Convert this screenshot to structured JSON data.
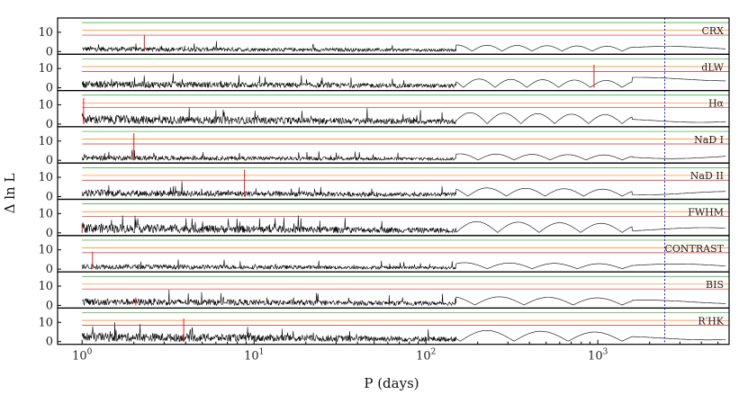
{
  "chart_data": {
    "type": "line",
    "xlabel": "P (days)",
    "ylabel": "Δ ln L",
    "x_scale": "log",
    "xlim": [
      0.72,
      5800
    ],
    "ylim": [
      0,
      16
    ],
    "x_ticks": [
      1,
      10,
      100,
      1000
    ],
    "x_tick_labels": [
      "10^0",
      "10^1",
      "10^2",
      "10^3"
    ],
    "y_ticks": [
      0,
      10
    ],
    "y_tick_labels": [
      "0",
      "10"
    ],
    "threshold_lines": [
      {
        "name": "green",
        "value": 15.0,
        "color": "#2ca02c"
      },
      {
        "name": "orange",
        "value": 11.0,
        "color": "#ff7f0e"
      },
      {
        "name": "red",
        "value": 8.5,
        "color": "#d62728"
      }
    ],
    "highlight_period": {
      "value": 2450,
      "color": "#0000cc",
      "style": "dashed"
    },
    "series": [
      {
        "name": "CRX",
        "peak_period": 2.3,
        "peak_value": 8.6
      },
      {
        "name": "dLW",
        "peak_period": 950,
        "peak_value": 12.0
      },
      {
        "name": "H_α",
        "peak_period": 1.02,
        "peak_value": 13.5
      },
      {
        "name": "NaD I",
        "peak_period": 2.0,
        "peak_value": 14.0
      },
      {
        "name": "NaD II",
        "peak_period": 8.8,
        "peak_value": 14.0
      },
      {
        "name": "FWHM",
        "peak_period": 1.0,
        "peak_value": 5.0
      },
      {
        "name": "CONTRAST",
        "peak_period": 1.15,
        "peak_value": 9.0
      },
      {
        "name": "BIS",
        "peak_period": 2.05,
        "peak_value": 4.0
      },
      {
        "name": "R'_HK",
        "peak_period": 3.9,
        "peak_value": 12.0
      }
    ],
    "panel_labels": [
      "CRX",
      "dLW",
      "Hα",
      "NaD I",
      "NaD II",
      "FWHM",
      "CONTRAST",
      "BIS",
      "R′HK"
    ],
    "line_colors": {
      "data": "#000000",
      "peak_marker": "#e41a1c"
    }
  }
}
